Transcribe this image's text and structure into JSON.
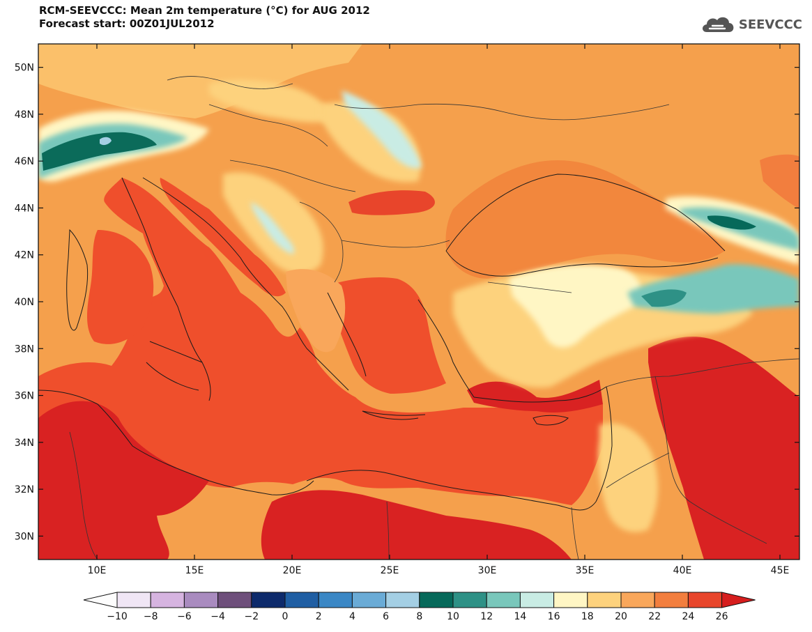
{
  "title": {
    "line1": "RCM-SEEVCCC: Mean 2m temperature (°C) for AUG 2012",
    "line2": "Forecast start: 00Z01JUL2012"
  },
  "logo": {
    "text": "SEEVCCC",
    "icon": "cloud-icon"
  },
  "map": {
    "projection": "lat-lon",
    "lon_range": [
      7,
      46
    ],
    "lat_range": [
      29,
      51
    ],
    "lat_ticks": [
      "50N",
      "48N",
      "46N",
      "44N",
      "42N",
      "40N",
      "38N",
      "36N",
      "34N",
      "32N",
      "30N"
    ],
    "lon_ticks": [
      "10E",
      "15E",
      "20E",
      "25E",
      "30E",
      "35E",
      "40E",
      "45E"
    ],
    "field": "Mean 2m temperature",
    "units": "°C",
    "land_background_level": "22 to 24",
    "sea_level": "24 to 26"
  },
  "colorbar": {
    "labels": [
      "-10",
      "-8",
      "-6",
      "-4",
      "-2",
      "0",
      "2",
      "4",
      "6",
      "8",
      "10",
      "12",
      "14",
      "16",
      "18",
      "20",
      "22",
      "24",
      "26"
    ],
    "colors": [
      "#fdfdfd",
      "#f0e6f5",
      "#d6b4e0",
      "#a98bbf",
      "#6e4f7b",
      "#0d2a6b",
      "#1f5ea3",
      "#3a87c5",
      "#6aabd6",
      "#a4cfe4",
      "#06695a",
      "#2e9186",
      "#79c7bb",
      "#c9ece4",
      "#fff6c4",
      "#fdd27d",
      "#f9a75b",
      "#f27e3e",
      "#e8452b",
      "#d61e1e"
    ]
  }
}
